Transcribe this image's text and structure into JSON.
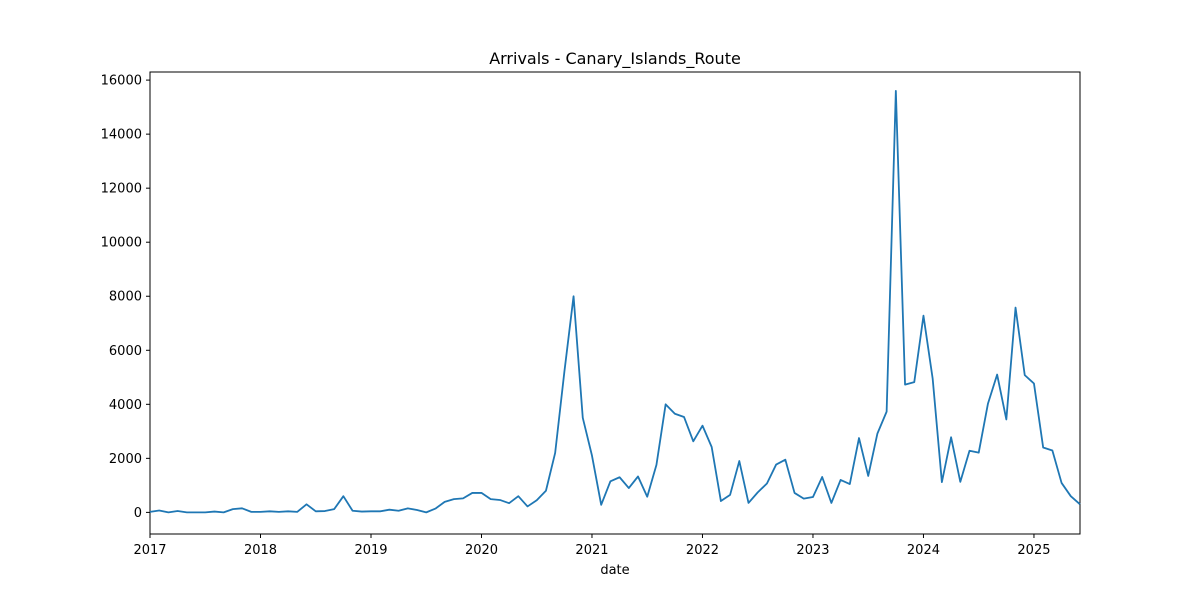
{
  "chart_data": {
    "type": "line",
    "title": "Arrivals - Canary_Islands_Route",
    "xlabel": "date",
    "ylabel": "",
    "xlim": [
      "2017-01",
      "2025-06"
    ],
    "ylim": [
      -800,
      16300
    ],
    "x_ticks": [
      "2017",
      "2018",
      "2019",
      "2020",
      "2021",
      "2022",
      "2023",
      "2024",
      "2025"
    ],
    "y_ticks": [
      0,
      2000,
      4000,
      6000,
      8000,
      10000,
      12000,
      14000,
      16000
    ],
    "grid": false,
    "legend": "none",
    "color": "#1f77b4",
    "series": [
      {
        "x": [
          "2017-01",
          "2017-02",
          "2017-03",
          "2017-04",
          "2017-05",
          "2017-06",
          "2017-07",
          "2017-08",
          "2017-09",
          "2017-10",
          "2017-11",
          "2017-12",
          "2018-01",
          "2018-02",
          "2018-03",
          "2018-04",
          "2018-05",
          "2018-06",
          "2018-07",
          "2018-08",
          "2018-09",
          "2018-10",
          "2018-11",
          "2018-12",
          "2019-01",
          "2019-02",
          "2019-03",
          "2019-04",
          "2019-05",
          "2019-06",
          "2019-07",
          "2019-08",
          "2019-09",
          "2019-10",
          "2019-11",
          "2019-12",
          "2020-01",
          "2020-02",
          "2020-03",
          "2020-04",
          "2020-05",
          "2020-06",
          "2020-07",
          "2020-08",
          "2020-09",
          "2020-10",
          "2020-11",
          "2020-12",
          "2021-01",
          "2021-02",
          "2021-03",
          "2021-04",
          "2021-05",
          "2021-06",
          "2021-07",
          "2021-08",
          "2021-09",
          "2021-10",
          "2021-11",
          "2021-12",
          "2022-01",
          "2022-02",
          "2022-03",
          "2022-04",
          "2022-05",
          "2022-06",
          "2022-07",
          "2022-08",
          "2022-09",
          "2022-10",
          "2022-11",
          "2022-12",
          "2023-01",
          "2023-02",
          "2023-03",
          "2023-04",
          "2023-05",
          "2023-06",
          "2023-07",
          "2023-08",
          "2023-09",
          "2023-10",
          "2023-11",
          "2023-12",
          "2024-01",
          "2024-02",
          "2024-03",
          "2024-04",
          "2024-05",
          "2024-06",
          "2024-07",
          "2024-08",
          "2024-09",
          "2024-10",
          "2024-11",
          "2024-12",
          "2025-01",
          "2025-02",
          "2025-03",
          "2025-04",
          "2025-05",
          "2025-06"
        ],
        "values": [
          20,
          70,
          0,
          50,
          0,
          0,
          0,
          30,
          0,
          120,
          150,
          20,
          20,
          40,
          20,
          40,
          20,
          300,
          40,
          50,
          120,
          600,
          60,
          30,
          40,
          40,
          100,
          60,
          150,
          90,
          0,
          140,
          390,
          490,
          520,
          720,
          720,
          490,
          460,
          340,
          600,
          220,
          450,
          800,
          2200,
          5200,
          8000,
          3500,
          2100,
          280,
          1150,
          1300,
          900,
          1330,
          580,
          1760,
          4000,
          3650,
          3530,
          2630,
          3210,
          2420,
          420,
          650,
          1900,
          350,
          740,
          1070,
          1770,
          1950,
          720,
          510,
          570,
          1310,
          350,
          1200,
          1050,
          2750,
          1350,
          2920,
          3730,
          15600,
          4730,
          4820,
          7280,
          4950,
          1120,
          2780,
          1130,
          2280,
          2210,
          4020,
          5100,
          3440,
          7580,
          5080,
          4770,
          2400,
          2290,
          1090,
          600,
          300
        ]
      }
    ]
  }
}
